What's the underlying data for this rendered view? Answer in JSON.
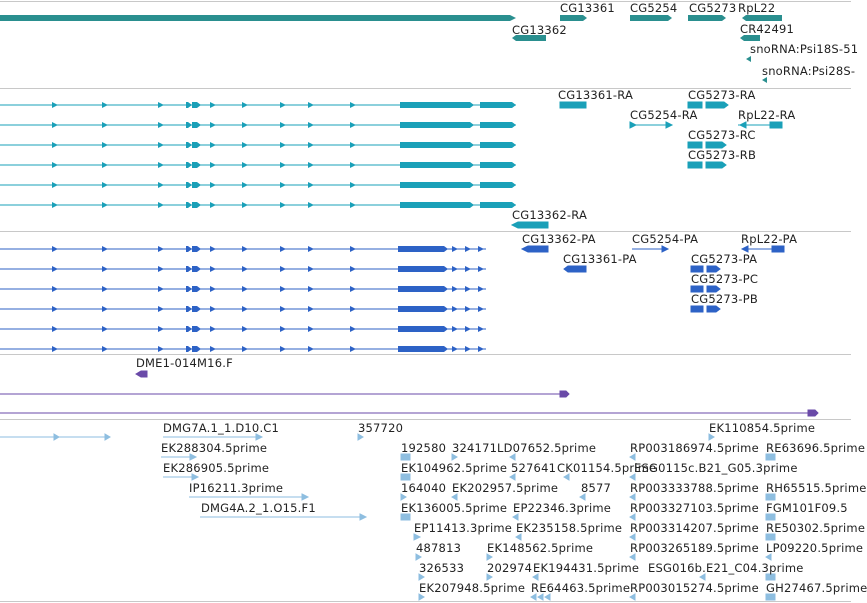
{
  "colors": {
    "gene": "#2a8f8f",
    "transcript": "#1aa0b8",
    "protein": "#2d62c6",
    "clone": "#6a4aa8",
    "est": "#8ebee0"
  },
  "gene_track": {
    "labels": [
      "CG13361",
      "CG5254",
      "CG5273",
      "RpL22",
      "CG13362",
      "CR42491",
      "snoRNA:Psi18S-51",
      "snoRNA:Psi28S-"
    ]
  },
  "transcript_track": {
    "labels": [
      "CG13361-RA",
      "CG5273-RA",
      "CG5254-RA",
      "RpL22-RA",
      "CG5273-RC",
      "CG5273-RB",
      "CG13362-RA"
    ]
  },
  "protein_track": {
    "labels": [
      "CG13362-PA",
      "CG5254-PA",
      "RpL22-PA",
      "CG13361-PA",
      "CG5273-PA",
      "CG5273-PC",
      "CG5273-PB"
    ]
  },
  "clone_track": {
    "labels": [
      "DME1-014M16.F"
    ]
  },
  "est_track": {
    "labels": [
      "DMG7A.1_1.D10.C1",
      "357720",
      "EK110854.5prime",
      "EK288304.5prime",
      "192580",
      "324171",
      "LD07652.5prime",
      "RP003186974.5prime",
      "RE63696.5prime",
      "EK286905.5prime",
      "EK104962.5prime",
      "527641",
      "CK01154.5prime",
      "ESG0115c.B21_G05.3prime",
      "IP16211.3prime",
      "164040",
      "EK202957.5prime",
      "8577",
      "RP003333788.5prime",
      "RH65515.5prime",
      "DMG4A.2_1.O15.F1",
      "EK136005.5prime",
      "EP22346.3prime",
      "RP003327103.5prime",
      "FGM101F09.5",
      "EP11413.3prime",
      "EK235158.5prime",
      "RP003314207.5prime",
      "RE50302.5prime",
      "487813",
      "EK148562.5prime",
      "RP003265189.5prime",
      "LP09220.5prime",
      "326533",
      "202974",
      "EK194431.5prime",
      "ESG016b.E21_C04.3prime",
      "EK207948.5prime",
      "RE64463.5prime",
      "RP003015274.5prime",
      "GH27467.5prime"
    ]
  }
}
